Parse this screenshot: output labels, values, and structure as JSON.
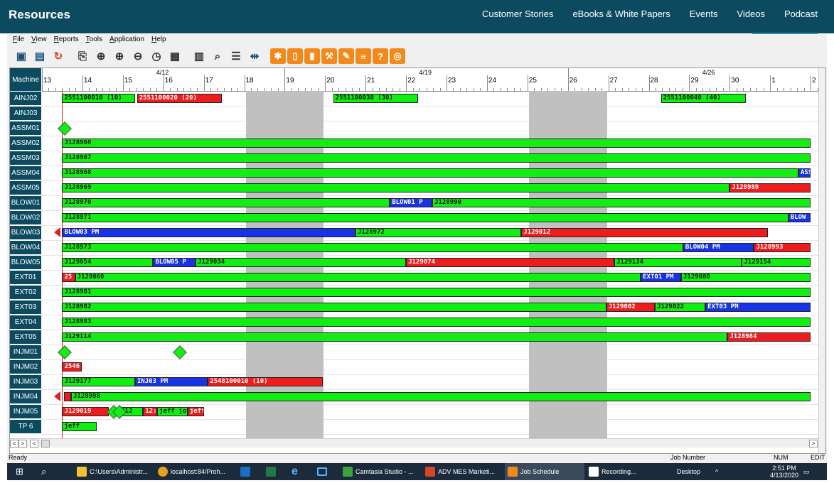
{
  "site": {
    "brand": "Resources",
    "nav": [
      "Customer Stories",
      "eBooks & White Papers",
      "Events",
      "Videos",
      "Podcast"
    ]
  },
  "app": {
    "menus": [
      "File",
      "View",
      "Reports",
      "Tools",
      "Application",
      "Help"
    ],
    "toolbar_icons": [
      "save-icon",
      "print-icon",
      "refresh-icon",
      "new-job-icon",
      "add-icon",
      "zoom-in-icon",
      "zoom-out-icon",
      "calendar-clock-icon",
      "calendar-icon",
      "report-icon",
      "search-icon",
      "list-icon",
      "split-icon",
      "burst-icon",
      "document-icon",
      "chart-icon",
      "wrench-icon",
      "edit-icon",
      "grid-icon",
      "help-icon",
      "globe-icon"
    ],
    "help_glyph": "?"
  },
  "gantt": {
    "machine_header": "Machine",
    "weeks": [
      "4/12",
      "4/19",
      "4/26"
    ],
    "days": [
      "13",
      "14",
      "15",
      "16",
      "17",
      "18",
      "19",
      "20",
      "21",
      "22",
      "23",
      "24",
      "25",
      "26",
      "27",
      "28",
      "29",
      "30",
      "1",
      "2"
    ],
    "machines": [
      "AINJ02",
      "AINJ03",
      "ASSM01",
      "ASSM02",
      "ASSM03",
      "ASSM04",
      "ASSM05",
      "BLOW01",
      "BLOW02",
      "BLOW03",
      "BLOW04",
      "BLOW05",
      "EXT01",
      "EXT02",
      "EXT03",
      "EXT04",
      "EXT05",
      "INJM01",
      "INJM02",
      "INJM03",
      "INJM04",
      "INJM05",
      "TP 6"
    ],
    "bars": [
      {
        "row": 0,
        "start": 0.5,
        "end": 2.3,
        "color": "green",
        "label": "2551100010 (10)"
      },
      {
        "row": 0,
        "start": 2.35,
        "end": 4.45,
        "color": "red",
        "label": "2551100020 (20)"
      },
      {
        "row": 0,
        "start": 7.2,
        "end": 9.3,
        "color": "green",
        "label": "2551100030 (30)"
      },
      {
        "row": 0,
        "start": 15.3,
        "end": 17.4,
        "color": "green",
        "label": "2551100040 (40)"
      },
      {
        "row": 3,
        "start": 0.5,
        "end": 19.0,
        "color": "green",
        "label": "J128966"
      },
      {
        "row": 4,
        "start": 0.5,
        "end": 19.0,
        "color": "green",
        "label": "J128967"
      },
      {
        "row": 5,
        "start": 0.5,
        "end": 18.7,
        "color": "green",
        "label": "J128968"
      },
      {
        "row": 5,
        "start": 18.7,
        "end": 19.0,
        "color": "blue",
        "label": "ASS"
      },
      {
        "row": 6,
        "start": 0.5,
        "end": 17.0,
        "color": "green",
        "label": "J128969"
      },
      {
        "row": 6,
        "start": 17.0,
        "end": 19.0,
        "color": "red",
        "label": "J128989"
      },
      {
        "row": 7,
        "start": 0.5,
        "end": 8.6,
        "color": "green",
        "label": "J128970"
      },
      {
        "row": 7,
        "start": 8.6,
        "end": 9.65,
        "color": "blue",
        "label": "BLOW01 P"
      },
      {
        "row": 7,
        "start": 9.65,
        "end": 19.0,
        "color": "green",
        "label": "J128990"
      },
      {
        "row": 8,
        "start": 0.5,
        "end": 18.45,
        "color": "green",
        "label": "J128971"
      },
      {
        "row": 8,
        "start": 18.45,
        "end": 19.0,
        "color": "blue",
        "label": "BLOW"
      },
      {
        "row": 9,
        "start": 0.5,
        "end": 7.75,
        "color": "blue",
        "label": "BLOW03 PM"
      },
      {
        "row": 9,
        "start": 7.75,
        "end": 11.85,
        "color": "green",
        "label": "J128972"
      },
      {
        "row": 9,
        "start": 11.85,
        "end": 17.95,
        "color": "red",
        "label": "J129012"
      },
      {
        "row": 10,
        "start": 0.5,
        "end": 15.85,
        "color": "green",
        "label": "J128973"
      },
      {
        "row": 10,
        "start": 15.85,
        "end": 17.6,
        "color": "blue",
        "label": "BLOW04 PM"
      },
      {
        "row": 10,
        "start": 17.6,
        "end": 19.0,
        "color": "red",
        "label": "J128993"
      },
      {
        "row": 11,
        "start": 0.5,
        "end": 2.75,
        "color": "green",
        "label": "J129054"
      },
      {
        "row": 11,
        "start": 2.75,
        "end": 3.8,
        "color": "blue",
        "label": "BLOW05 P"
      },
      {
        "row": 11,
        "start": 3.8,
        "end": 9.0,
        "color": "green",
        "label": "J129034"
      },
      {
        "row": 11,
        "start": 9.0,
        "end": 14.15,
        "color": "red",
        "label": "J129074"
      },
      {
        "row": 11,
        "start": 14.15,
        "end": 17.3,
        "color": "green",
        "label": "J129134"
      },
      {
        "row": 11,
        "start": 17.3,
        "end": 19.0,
        "color": "green",
        "label": "J129154"
      },
      {
        "row": 12,
        "start": 0.5,
        "end": 0.82,
        "color": "red",
        "label": "25"
      },
      {
        "row": 12,
        "start": 0.82,
        "end": 14.8,
        "color": "green",
        "label": "J129060"
      },
      {
        "row": 12,
        "start": 14.8,
        "end": 15.8,
        "color": "blue",
        "label": "EXT01 PM"
      },
      {
        "row": 12,
        "start": 15.8,
        "end": 19.0,
        "color": "green",
        "label": "J129080"
      },
      {
        "row": 13,
        "start": 0.5,
        "end": 19.0,
        "color": "green",
        "label": "J128981"
      },
      {
        "row": 14,
        "start": 0.5,
        "end": 13.95,
        "color": "green",
        "label": "J128982"
      },
      {
        "row": 14,
        "start": 13.95,
        "end": 15.15,
        "color": "red",
        "label": "J129002"
      },
      {
        "row": 14,
        "start": 15.15,
        "end": 16.4,
        "color": "green",
        "label": "J129022"
      },
      {
        "row": 14,
        "start": 16.4,
        "end": 19.0,
        "color": "blue",
        "label": "EXT03 PM"
      },
      {
        "row": 15,
        "start": 0.5,
        "end": 19.0,
        "color": "green",
        "label": "J128983"
      },
      {
        "row": 16,
        "start": 0.5,
        "end": 16.95,
        "color": "green",
        "label": "J129114"
      },
      {
        "row": 16,
        "start": 16.95,
        "end": 19.0,
        "color": "red",
        "label": "J128984"
      },
      {
        "row": 18,
        "start": 0.5,
        "end": 0.98,
        "color": "red",
        "label": "2546"
      },
      {
        "row": 19,
        "start": 0.5,
        "end": 2.3,
        "color": "green",
        "label": "J129177"
      },
      {
        "row": 19,
        "start": 2.3,
        "end": 4.1,
        "color": "blue",
        "label": "INJ03 PM"
      },
      {
        "row": 19,
        "start": 4.1,
        "end": 6.95,
        "color": "red",
        "label": "2548100010 (10)"
      },
      {
        "row": 20,
        "start": 0.55,
        "end": 0.72,
        "color": "red",
        "label": ""
      },
      {
        "row": 20,
        "start": 0.72,
        "end": 19.0,
        "color": "green",
        "label": "J128998"
      },
      {
        "row": 21,
        "start": 0.5,
        "end": 1.65,
        "color": "red",
        "label": "J129019"
      },
      {
        "row": 21,
        "start": 1.9,
        "end": 2.5,
        "color": "green",
        "label": "J12"
      },
      {
        "row": 21,
        "start": 2.5,
        "end": 2.85,
        "color": "red",
        "label": "12:"
      },
      {
        "row": 21,
        "start": 2.85,
        "end": 3.6,
        "color": "green",
        "label": "jeff jot"
      },
      {
        "row": 21,
        "start": 3.6,
        "end": 4.0,
        "color": "red",
        "label": "jeff"
      },
      {
        "row": 22,
        "start": 0.5,
        "end": 1.35,
        "color": "green",
        "label": "jeff"
      }
    ],
    "milestones": [
      {
        "row": 2,
        "at": 0.55
      },
      {
        "row": 17,
        "at": 0.55
      },
      {
        "row": 17,
        "at": 3.4
      },
      {
        "row": 21,
        "at": 1.75
      },
      {
        "row": 21,
        "at": 1.9
      }
    ],
    "red_markers": [
      {
        "row": 9,
        "at": 0.4
      },
      {
        "row": 20,
        "at": 0.4
      }
    ]
  },
  "status": {
    "left": "Ready",
    "job": "Job Number",
    "num": "NUM",
    "mode": "EDIT"
  },
  "taskbar": {
    "items": [
      "C:\\Users\\Administr...",
      "localhost:84/Proh...",
      "Camtasia Studio - ...",
      "ADV MES Marketi...",
      "Job Schedule",
      "Recording..."
    ],
    "desktop": "Desktop",
    "time": "2:51 PM",
    "date": "4/13/2020"
  }
}
